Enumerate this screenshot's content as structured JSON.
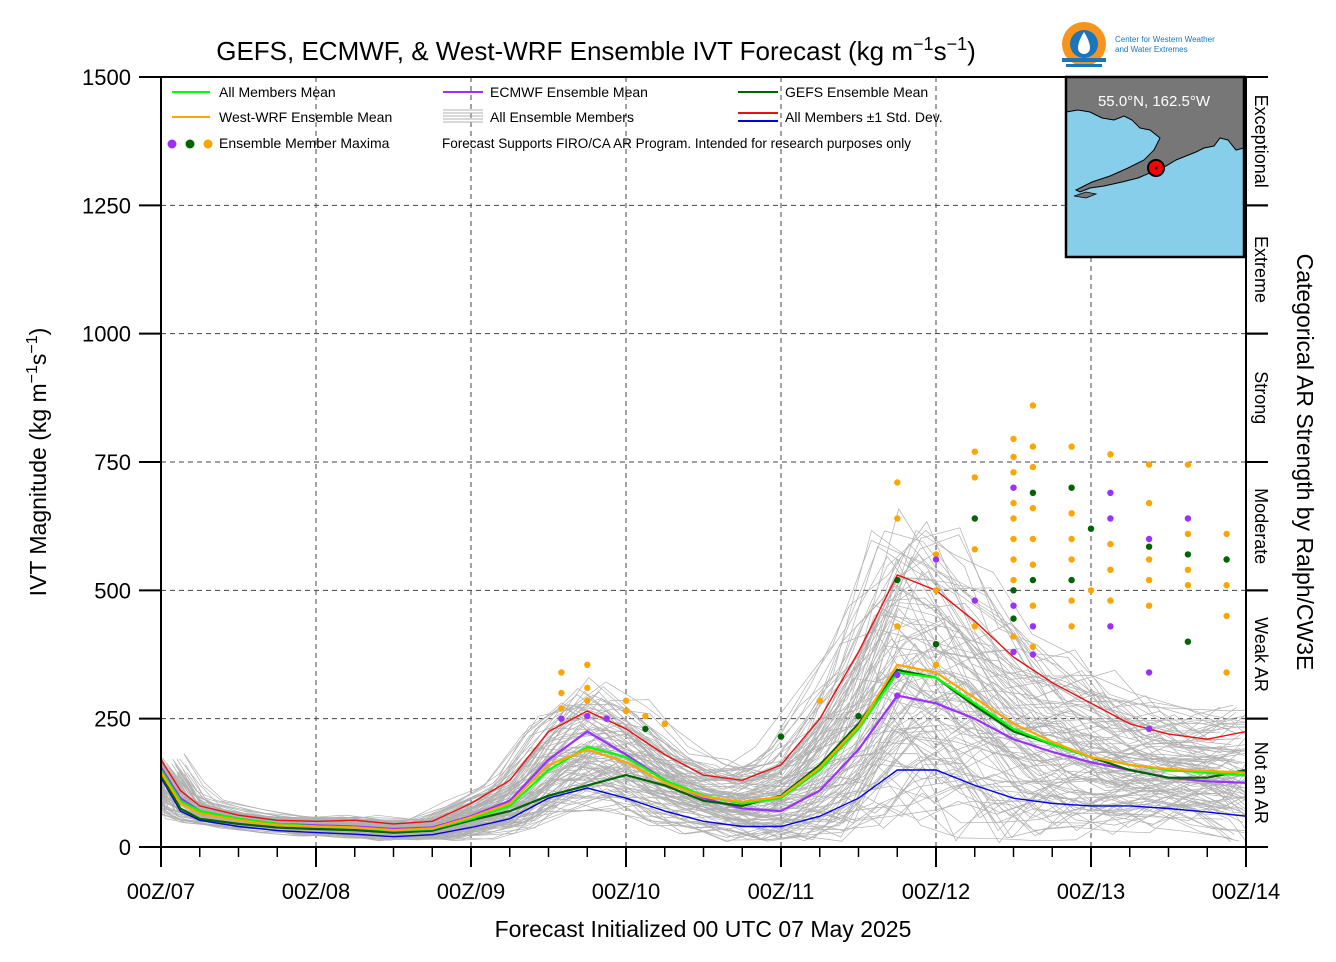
{
  "logo": {
    "line1": "Center for Western Weather",
    "line2": "and Water Extremes"
  },
  "map": {
    "label": "55.0°N, 162.5°W",
    "land_color": "#777777",
    "ocean_color": "#87ceeb"
  },
  "legend": {
    "all_mean": "All Members Mean",
    "ecmwf_mean": "ECMWF Ensemble Mean",
    "gefs_mean": "GEFS Ensemble Mean",
    "wrf_mean": "West-WRF Ensemble Mean",
    "all_members": "All Ensemble Members",
    "std": "All Members ±1 Std. Dev.",
    "maxima": "Ensemble Member Maxima",
    "note": "Forecast Supports FIRO/CA AR Program. Intended for research purposes only"
  },
  "categories": [
    {
      "label": "Exceptional",
      "from": 1250,
      "to": 1500
    },
    {
      "label": "Extreme",
      "from": 1000,
      "to": 1250
    },
    {
      "label": "Strong",
      "from": 750,
      "to": 1000
    },
    {
      "label": "Moderate",
      "from": 500,
      "to": 750
    },
    {
      "label": "Weak AR",
      "from": 250,
      "to": 500
    },
    {
      "label": "Not an AR",
      "from": 0,
      "to": 250
    }
  ],
  "colors": {
    "all_mean": "#00ff00",
    "ecmwf": "#9b30ff",
    "gefs": "#006400",
    "wrf": "#ffa500",
    "members": "#b0b0b0",
    "std_upper": "#e81010",
    "std_lower": "#0000e0"
  },
  "chart_data": {
    "type": "line",
    "title": "GEFS, ECMWF, & West-WRF Ensemble IVT Forecast (kg m",
    "title_sup1": "−1",
    "title_mid": "s",
    "title_sup2": "−1",
    "title_end": ")",
    "xlabel": "Forecast Initialized 00 UTC 07 May 2025",
    "ylabel": "IVT Magnitude (kg m",
    "ylabel_sup1": "−1",
    "ylabel_mid": "s",
    "ylabel_sup2": "−1",
    "ylabel_end": ")",
    "right_label": "Categorical AR Strength by Ralph/CW3E",
    "ylim": [
      0,
      1500
    ],
    "yticks": [
      "0",
      "250",
      "500",
      "750",
      "1000",
      "1250",
      "1500"
    ],
    "xticks": [
      "00Z/07",
      "00Z/08",
      "00Z/09",
      "00Z/10",
      "00Z/11",
      "00Z/12",
      "00Z/13",
      "00Z/14"
    ],
    "x_unit": "forecast hour",
    "xlim": [
      0,
      168
    ],
    "grid": true,
    "legend_position": "top-left",
    "x": [
      0,
      3,
      6,
      12,
      18,
      24,
      30,
      36,
      42,
      48,
      54,
      60,
      66,
      72,
      78,
      84,
      90,
      96,
      102,
      108,
      114,
      120,
      126,
      132,
      138,
      144,
      150,
      156,
      162,
      168
    ],
    "series": [
      {
        "key": "all_mean",
        "name": "All Members Mean",
        "values": [
          150,
          90,
          70,
          55,
          45,
          40,
          38,
          32,
          35,
          55,
          80,
          150,
          195,
          175,
          130,
          100,
          85,
          95,
          150,
          230,
          340,
          330,
          280,
          230,
          200,
          175,
          160,
          150,
          145,
          140
        ]
      },
      {
        "key": "ecmwf",
        "name": "ECMWF Ensemble Mean",
        "values": [
          155,
          95,
          70,
          55,
          45,
          42,
          40,
          35,
          38,
          60,
          90,
          170,
          225,
          180,
          130,
          95,
          75,
          70,
          110,
          190,
          295,
          280,
          250,
          210,
          185,
          165,
          150,
          135,
          128,
          125
        ]
      },
      {
        "key": "gefs",
        "name": "GEFS Ensemble Mean",
        "values": [
          140,
          75,
          55,
          45,
          38,
          35,
          33,
          28,
          32,
          52,
          70,
          100,
          120,
          140,
          120,
          90,
          80,
          100,
          160,
          240,
          345,
          330,
          275,
          225,
          200,
          175,
          150,
          135,
          135,
          150
        ]
      },
      {
        "key": "wrf",
        "name": "West-WRF Ensemble Mean",
        "values": [
          145,
          85,
          65,
          52,
          42,
          40,
          38,
          33,
          36,
          58,
          85,
          160,
          190,
          165,
          125,
          98,
          88,
          98,
          155,
          235,
          355,
          340,
          290,
          240,
          205,
          175,
          160,
          152,
          148,
          145
        ]
      },
      {
        "key": "std_upper",
        "name": "All Members ±1 Std. Dev.",
        "values": [
          170,
          110,
          80,
          62,
          52,
          50,
          52,
          45,
          50,
          85,
          130,
          225,
          265,
          230,
          180,
          140,
          130,
          160,
          250,
          380,
          530,
          500,
          440,
          370,
          320,
          280,
          240,
          220,
          210,
          225
        ]
      },
      {
        "key": "std_lower",
        "name": "All Members ±1 Std. Dev.",
        "values": [
          135,
          70,
          52,
          40,
          32,
          28,
          25,
          20,
          24,
          38,
          55,
          95,
          115,
          95,
          70,
          50,
          40,
          40,
          60,
          95,
          150,
          150,
          120,
          95,
          85,
          80,
          80,
          75,
          68,
          60
        ]
      }
    ],
    "maxima": [
      {
        "x": 62,
        "y": 340,
        "c": "wrf"
      },
      {
        "x": 62,
        "y": 300,
        "c": "wrf"
      },
      {
        "x": 62,
        "y": 270,
        "c": "wrf"
      },
      {
        "x": 62,
        "y": 250,
        "c": "ecmwf"
      },
      {
        "x": 66,
        "y": 355,
        "c": "wrf"
      },
      {
        "x": 66,
        "y": 310,
        "c": "wrf"
      },
      {
        "x": 66,
        "y": 285,
        "c": "wrf"
      },
      {
        "x": 66,
        "y": 255,
        "c": "ecmwf"
      },
      {
        "x": 69,
        "y": 250,
        "c": "ecmwf"
      },
      {
        "x": 72,
        "y": 285,
        "c": "wrf"
      },
      {
        "x": 72,
        "y": 265,
        "c": "wrf"
      },
      {
        "x": 75,
        "y": 255,
        "c": "wrf"
      },
      {
        "x": 75,
        "y": 230,
        "c": "gefs"
      },
      {
        "x": 78,
        "y": 240,
        "c": "wrf"
      },
      {
        "x": 96,
        "y": 215,
        "c": "gefs"
      },
      {
        "x": 102,
        "y": 285,
        "c": "wrf"
      },
      {
        "x": 108,
        "y": 255,
        "c": "gefs"
      },
      {
        "x": 114,
        "y": 710,
        "c": "wrf"
      },
      {
        "x": 114,
        "y": 640,
        "c": "wrf"
      },
      {
        "x": 114,
        "y": 520,
        "c": "gefs"
      },
      {
        "x": 114,
        "y": 430,
        "c": "wrf"
      },
      {
        "x": 114,
        "y": 335,
        "c": "ecmwf"
      },
      {
        "x": 114,
        "y": 295,
        "c": "ecmwf"
      },
      {
        "x": 120,
        "y": 570,
        "c": "wrf"
      },
      {
        "x": 120,
        "y": 560,
        "c": "ecmwf"
      },
      {
        "x": 120,
        "y": 500,
        "c": "wrf"
      },
      {
        "x": 120,
        "y": 395,
        "c": "gefs"
      },
      {
        "x": 120,
        "y": 355,
        "c": "wrf"
      },
      {
        "x": 126,
        "y": 770,
        "c": "wrf"
      },
      {
        "x": 126,
        "y": 720,
        "c": "wrf"
      },
      {
        "x": 126,
        "y": 640,
        "c": "gefs"
      },
      {
        "x": 126,
        "y": 580,
        "c": "wrf"
      },
      {
        "x": 126,
        "y": 480,
        "c": "ecmwf"
      },
      {
        "x": 126,
        "y": 430,
        "c": "wrf"
      },
      {
        "x": 132,
        "y": 795,
        "c": "wrf"
      },
      {
        "x": 132,
        "y": 760,
        "c": "wrf"
      },
      {
        "x": 132,
        "y": 730,
        "c": "wrf"
      },
      {
        "x": 132,
        "y": 700,
        "c": "ecmwf"
      },
      {
        "x": 132,
        "y": 670,
        "c": "wrf"
      },
      {
        "x": 132,
        "y": 640,
        "c": "wrf"
      },
      {
        "x": 132,
        "y": 600,
        "c": "wrf"
      },
      {
        "x": 132,
        "y": 560,
        "c": "wrf"
      },
      {
        "x": 132,
        "y": 520,
        "c": "wrf"
      },
      {
        "x": 132,
        "y": 500,
        "c": "gefs"
      },
      {
        "x": 132,
        "y": 470,
        "c": "ecmwf"
      },
      {
        "x": 132,
        "y": 445,
        "c": "gefs"
      },
      {
        "x": 132,
        "y": 410,
        "c": "wrf"
      },
      {
        "x": 132,
        "y": 380,
        "c": "ecmwf"
      },
      {
        "x": 135,
        "y": 860,
        "c": "wrf"
      },
      {
        "x": 135,
        "y": 780,
        "c": "wrf"
      },
      {
        "x": 135,
        "y": 740,
        "c": "wrf"
      },
      {
        "x": 135,
        "y": 690,
        "c": "gefs"
      },
      {
        "x": 135,
        "y": 660,
        "c": "wrf"
      },
      {
        "x": 135,
        "y": 600,
        "c": "wrf"
      },
      {
        "x": 135,
        "y": 550,
        "c": "wrf"
      },
      {
        "x": 135,
        "y": 520,
        "c": "gefs"
      },
      {
        "x": 135,
        "y": 470,
        "c": "wrf"
      },
      {
        "x": 135,
        "y": 430,
        "c": "ecmwf"
      },
      {
        "x": 135,
        "y": 390,
        "c": "wrf"
      },
      {
        "x": 135,
        "y": 375,
        "c": "ecmwf"
      },
      {
        "x": 141,
        "y": 780,
        "c": "wrf"
      },
      {
        "x": 141,
        "y": 700,
        "c": "gefs"
      },
      {
        "x": 141,
        "y": 650,
        "c": "wrf"
      },
      {
        "x": 141,
        "y": 600,
        "c": "wrf"
      },
      {
        "x": 141,
        "y": 560,
        "c": "wrf"
      },
      {
        "x": 141,
        "y": 520,
        "c": "gefs"
      },
      {
        "x": 141,
        "y": 480,
        "c": "wrf"
      },
      {
        "x": 141,
        "y": 430,
        "c": "wrf"
      },
      {
        "x": 144,
        "y": 620,
        "c": "gefs"
      },
      {
        "x": 144,
        "y": 500,
        "c": "wrf"
      },
      {
        "x": 147,
        "y": 765,
        "c": "wrf"
      },
      {
        "x": 147,
        "y": 690,
        "c": "ecmwf"
      },
      {
        "x": 147,
        "y": 640,
        "c": "ecmwf"
      },
      {
        "x": 147,
        "y": 590,
        "c": "wrf"
      },
      {
        "x": 147,
        "y": 540,
        "c": "wrf"
      },
      {
        "x": 147,
        "y": 480,
        "c": "wrf"
      },
      {
        "x": 147,
        "y": 430,
        "c": "ecmwf"
      },
      {
        "x": 153,
        "y": 745,
        "c": "wrf"
      },
      {
        "x": 153,
        "y": 670,
        "c": "wrf"
      },
      {
        "x": 153,
        "y": 600,
        "c": "ecmwf"
      },
      {
        "x": 153,
        "y": 585,
        "c": "gefs"
      },
      {
        "x": 153,
        "y": 560,
        "c": "wrf"
      },
      {
        "x": 153,
        "y": 520,
        "c": "wrf"
      },
      {
        "x": 153,
        "y": 470,
        "c": "wrf"
      },
      {
        "x": 153,
        "y": 340,
        "c": "ecmwf"
      },
      {
        "x": 153,
        "y": 230,
        "c": "ecmwf"
      },
      {
        "x": 159,
        "y": 745,
        "c": "wrf"
      },
      {
        "x": 159,
        "y": 640,
        "c": "ecmwf"
      },
      {
        "x": 159,
        "y": 610,
        "c": "wrf"
      },
      {
        "x": 159,
        "y": 570,
        "c": "gefs"
      },
      {
        "x": 159,
        "y": 540,
        "c": "wrf"
      },
      {
        "x": 159,
        "y": 510,
        "c": "wrf"
      },
      {
        "x": 159,
        "y": 400,
        "c": "gefs"
      },
      {
        "x": 165,
        "y": 610,
        "c": "wrf"
      },
      {
        "x": 165,
        "y": 560,
        "c": "gefs"
      },
      {
        "x": 165,
        "y": 510,
        "c": "wrf"
      },
      {
        "x": 165,
        "y": 450,
        "c": "wrf"
      },
      {
        "x": 165,
        "y": 340,
        "c": "wrf"
      }
    ]
  }
}
